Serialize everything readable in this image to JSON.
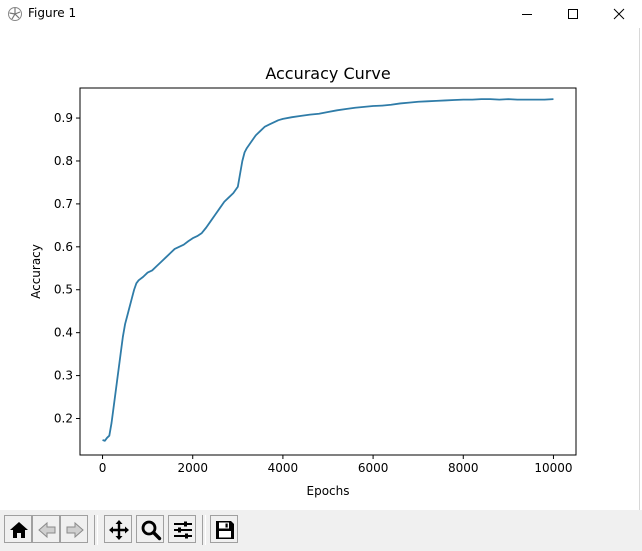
{
  "window": {
    "title": "Figure 1",
    "buttons": [
      "minimize",
      "maximize",
      "close"
    ]
  },
  "toolbar": {
    "buttons": [
      {
        "name": "home",
        "icon": "home-icon"
      },
      {
        "name": "back",
        "icon": "back-arrow-icon"
      },
      {
        "name": "forward",
        "icon": "forward-arrow-icon"
      },
      {
        "name": "pan",
        "icon": "move-icon"
      },
      {
        "name": "zoom",
        "icon": "magnifier-icon"
      },
      {
        "name": "configure-subplots",
        "icon": "sliders-icon"
      },
      {
        "name": "save",
        "icon": "floppy-disk-icon"
      }
    ]
  },
  "chart_data": {
    "type": "line",
    "title": "Accuracy Curve",
    "xlabel": "Epochs",
    "ylabel": "Accuracy",
    "xlim": [
      -500,
      10500
    ],
    "ylim": [
      0.115,
      0.97
    ],
    "xticks": [
      0,
      2000,
      4000,
      6000,
      8000,
      10000
    ],
    "yticks": [
      0.2,
      0.3,
      0.4,
      0.5,
      0.6,
      0.7,
      0.8,
      0.9
    ],
    "grid": false,
    "color": "#2f7ca8",
    "series": [
      {
        "x": [
          0,
          50,
          100,
          150,
          200,
          250,
          300,
          350,
          400,
          450,
          500,
          550,
          600,
          650,
          700,
          750,
          800,
          900,
          1000,
          1100,
          1200,
          1300,
          1400,
          1500,
          1600,
          1700,
          1800,
          1900,
          2000,
          2100,
          2200,
          2300,
          2400,
          2500,
          2600,
          2700,
          2800,
          2900,
          3000,
          3050,
          3100,
          3150,
          3200,
          3300,
          3400,
          3500,
          3600,
          3700,
          3800,
          3900,
          4000,
          4200,
          4400,
          4600,
          4800,
          5000,
          5200,
          5400,
          5600,
          5800,
          6000,
          6200,
          6400,
          6600,
          6800,
          7000,
          7200,
          7400,
          7600,
          7800,
          8000,
          8200,
          8400,
          8600,
          8800,
          9000,
          9200,
          9400,
          9600,
          9800,
          10000
        ],
        "y": [
          0.15,
          0.148,
          0.155,
          0.16,
          0.19,
          0.23,
          0.27,
          0.31,
          0.35,
          0.39,
          0.42,
          0.44,
          0.46,
          0.48,
          0.5,
          0.515,
          0.522,
          0.53,
          0.54,
          0.545,
          0.555,
          0.565,
          0.575,
          0.585,
          0.595,
          0.6,
          0.605,
          0.613,
          0.62,
          0.625,
          0.632,
          0.645,
          0.66,
          0.675,
          0.69,
          0.705,
          0.715,
          0.725,
          0.74,
          0.77,
          0.8,
          0.82,
          0.83,
          0.845,
          0.86,
          0.87,
          0.88,
          0.885,
          0.89,
          0.895,
          0.898,
          0.902,
          0.905,
          0.908,
          0.91,
          0.914,
          0.918,
          0.921,
          0.924,
          0.926,
          0.928,
          0.929,
          0.931,
          0.934,
          0.936,
          0.938,
          0.939,
          0.94,
          0.941,
          0.942,
          0.943,
          0.943,
          0.944,
          0.944,
          0.943,
          0.944,
          0.943,
          0.943,
          0.943,
          0.943,
          0.944
        ]
      }
    ]
  }
}
